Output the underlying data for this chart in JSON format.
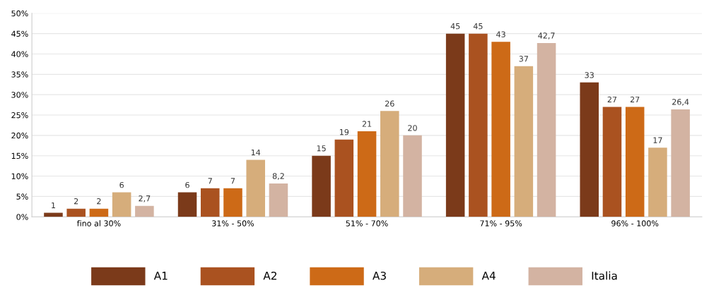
{
  "chart_data": {
    "type": "bar",
    "categories": [
      "fino al 30%",
      "31% - 50%",
      "51% - 70%",
      "71% - 95%",
      "96% - 100%"
    ],
    "series": [
      {
        "name": "A1",
        "color": "#7b3a1a",
        "values": [
          1,
          6,
          15,
          45,
          33
        ],
        "value_labels": [
          "1",
          "6",
          "15",
          "45",
          "33"
        ]
      },
      {
        "name": "A2",
        "color": "#aa5220",
        "values": [
          2,
          7,
          19,
          45,
          27
        ],
        "value_labels": [
          "2",
          "7",
          "19",
          "45",
          "27"
        ]
      },
      {
        "name": "A3",
        "color": "#cd6a17",
        "values": [
          2,
          7,
          21,
          43,
          27
        ],
        "value_labels": [
          "2",
          "7",
          "21",
          "43",
          "27"
        ]
      },
      {
        "name": "A4",
        "color": "#d6ad7b",
        "values": [
          6,
          14,
          26,
          37,
          17
        ],
        "value_labels": [
          "6",
          "14",
          "26",
          "37",
          "17"
        ]
      },
      {
        "name": "Italia",
        "color": "#d3b3a2",
        "values": [
          2.7,
          8.2,
          20,
          42.7,
          26.4
        ],
        "value_labels": [
          "2,7",
          "8,2",
          "20",
          "42,7",
          "26,4"
        ]
      }
    ],
    "ylim": [
      0,
      50
    ],
    "yticks": [
      {
        "value": 0,
        "label": "0%"
      },
      {
        "value": 5,
        "label": "5%"
      },
      {
        "value": 10,
        "label": "10%"
      },
      {
        "value": 15,
        "label": "15%"
      },
      {
        "value": 20,
        "label": "20%"
      },
      {
        "value": 25,
        "label": "25%"
      },
      {
        "value": 30,
        "label": "30%"
      },
      {
        "value": 35,
        "label": "35%"
      },
      {
        "value": 40,
        "label": "40%"
      },
      {
        "value": 45,
        "label": "45%"
      },
      {
        "value": 50,
        "label": "50%"
      }
    ],
    "grid": "y",
    "legend": "bottom"
  }
}
